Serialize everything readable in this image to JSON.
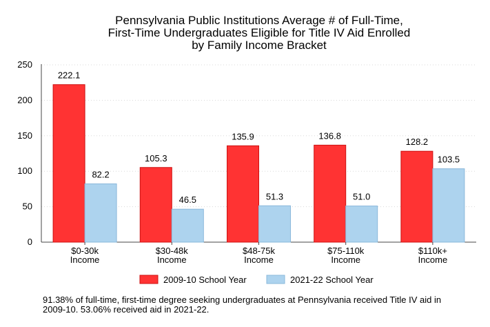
{
  "chart_data": {
    "type": "bar",
    "title_lines": [
      "Pennsylvania Public Institutions Average # of Full-Time,",
      "First-Time Undergraduates Eligible for Title IV Aid Enrolled",
      "by Family Income Bracket"
    ],
    "categories": [
      [
        "$0-30k",
        "Income"
      ],
      [
        "$30-48k",
        "Income"
      ],
      [
        "$48-75k",
        "Income"
      ],
      [
        "$75-110k",
        "Income"
      ],
      [
        "$110k+",
        "Income"
      ]
    ],
    "series": [
      {
        "name": "2009-10 School Year",
        "color": "#ff3333",
        "stroke": "#cc1111",
        "values": [
          222.1,
          105.3,
          135.9,
          136.8,
          128.2
        ],
        "labels": [
          "222.1",
          "105.3",
          "135.9",
          "136.8",
          "128.2"
        ]
      },
      {
        "name": "2021-22 School Year",
        "color": "#add3ee",
        "stroke": "#8ab8db",
        "values": [
          82.2,
          46.5,
          51.3,
          51.0,
          103.5
        ],
        "labels": [
          "82.2",
          "46.5",
          "51.3",
          "51.0",
          "103.5"
        ]
      }
    ],
    "ylim": [
      0,
      250
    ],
    "yticks": [
      0,
      50,
      100,
      150,
      200,
      250
    ],
    "grid": true,
    "legend_position": "bottom",
    "xlabel": "",
    "ylabel": ""
  },
  "footnote": "91.38% of full-time, first-time degree seeking undergraduates at Pennsylvania received Title IV aid in 2009-10. 53.06% received aid in 2021-22."
}
